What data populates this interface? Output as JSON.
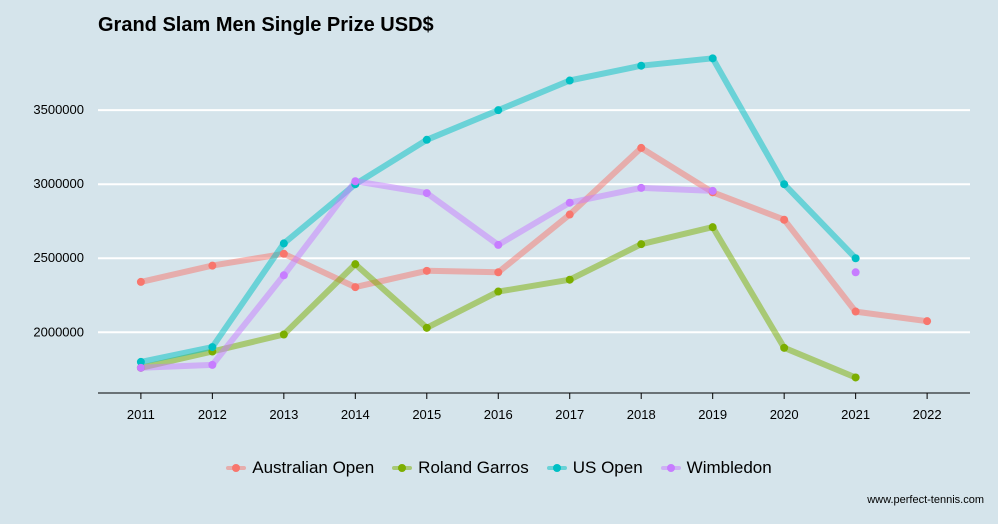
{
  "title": "Grand Slam Men Single Prize USD$",
  "source": "www.perfect-tennis.com",
  "chart_data": {
    "type": "line",
    "title": "Grand Slam Men Single Prize USD$",
    "xlabel": "",
    "ylabel": "",
    "x": [
      2011,
      2012,
      2013,
      2014,
      2015,
      2016,
      2017,
      2018,
      2019,
      2020,
      2021,
      2022
    ],
    "xlim": [
      2010.4,
      2022.6
    ],
    "ylim": [
      1590000,
      3940000
    ],
    "yticks": [
      2000000,
      2500000,
      3000000,
      3500000
    ],
    "ytick_labels": [
      "2000000",
      "2500000",
      "3000000",
      "3500000"
    ],
    "grid": "horizontal",
    "legend_position": "bottom",
    "series": [
      {
        "name": "Australian Open",
        "color": "#f8766d",
        "values": [
          2340000,
          2450000,
          2530000,
          2305000,
          2415000,
          2405000,
          2795000,
          3245000,
          2945000,
          2760000,
          2140000,
          2075000
        ]
      },
      {
        "name": "Roland Garros",
        "color": "#7cae00",
        "values": [
          1760000,
          1870000,
          1985000,
          2460000,
          2030000,
          2275000,
          2355000,
          2595000,
          2710000,
          1895000,
          1695000,
          null
        ]
      },
      {
        "name": "US Open",
        "color": "#00bfc4",
        "values": [
          1800000,
          1900000,
          2600000,
          3000000,
          3300000,
          3500000,
          3700000,
          3800000,
          3850000,
          3000000,
          2500000,
          null
        ]
      },
      {
        "name": "Wimbledon",
        "color": "#c77cff",
        "values": [
          1760000,
          1780000,
          2385000,
          3020000,
          2940000,
          2590000,
          2875000,
          2975000,
          2955000,
          null,
          2405000,
          null
        ]
      }
    ]
  }
}
